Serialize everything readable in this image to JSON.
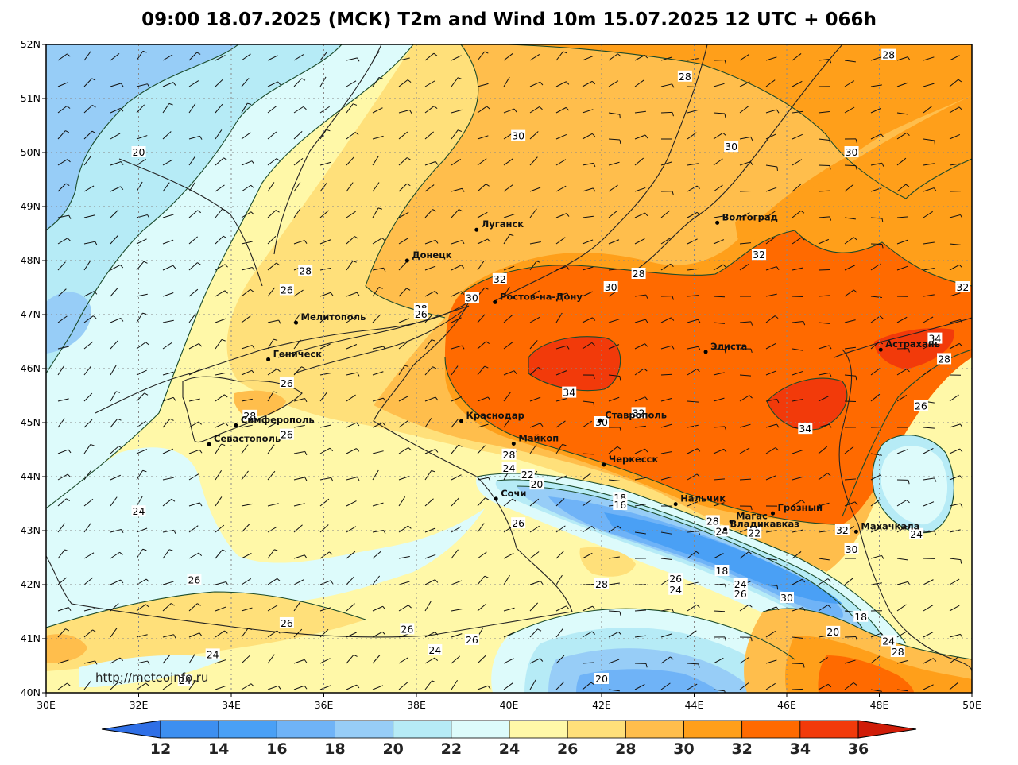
{
  "title": "09:00 18.07.2025 (МСК) T2m and Wind 10m 15.07.2025 12 UTC + 066h",
  "credit": "http://meteoinfo.ru",
  "lat_ticks": [
    "52N",
    "51N",
    "50N",
    "49N",
    "48N",
    "47N",
    "46N",
    "45N",
    "44N",
    "43N",
    "42N",
    "41N",
    "40N"
  ],
  "lon_ticks": [
    "30E",
    "32E",
    "34E",
    "36E",
    "38E",
    "40E",
    "42E",
    "44E",
    "46E",
    "48E",
    "50E"
  ],
  "colorbar": {
    "labels": [
      "12",
      "14",
      "16",
      "18",
      "20",
      "22",
      "24",
      "26",
      "28",
      "30",
      "32",
      "34",
      "36"
    ],
    "colors": [
      "#2f6fe6",
      "#3d8ff0",
      "#4aa0f5",
      "#6fb3f7",
      "#97cdf7",
      "#b6ebf6",
      "#ddfbfb",
      "#fff8a8",
      "#ffe07a",
      "#ffbe4c",
      "#ff9f1a",
      "#ff6a00",
      "#f23a0a",
      "#d01c08"
    ]
  },
  "zones": {
    "t20": "#97cdf7",
    "t22": "#b6ebf6",
    "t24": "#ddfbfb",
    "t26": "#fff8a8",
    "t28": "#ffe07a",
    "t30": "#ffbe4c",
    "t32": "#ff9f1a",
    "t34": "#ff6a00",
    "t18": "#6fb3f7",
    "t16": "#4aa0f5"
  },
  "cities": [
    {
      "name": "Луганск",
      "lon": 39.3,
      "lat": 48.57
    },
    {
      "name": "Донецк",
      "lon": 37.8,
      "lat": 48.0
    },
    {
      "name": "Волгоград",
      "lon": 44.5,
      "lat": 48.7
    },
    {
      "name": "Ростов-на-Дону",
      "lon": 39.7,
      "lat": 47.23
    },
    {
      "name": "Мелитополь",
      "lon": 35.4,
      "lat": 46.85
    },
    {
      "name": "Геническ",
      "lon": 34.8,
      "lat": 46.17
    },
    {
      "name": "Элиста",
      "lon": 44.25,
      "lat": 46.31
    },
    {
      "name": "Астрахань",
      "lon": 48.03,
      "lat": 46.35
    },
    {
      "name": "Краснодар",
      "lon": 38.97,
      "lat": 45.03
    },
    {
      "name": "Ставрополь",
      "lon": 41.97,
      "lat": 45.04
    },
    {
      "name": "Симферополь",
      "lon": 34.1,
      "lat": 44.95
    },
    {
      "name": "Севастополь",
      "lon": 33.52,
      "lat": 44.6
    },
    {
      "name": "Майкоп",
      "lon": 40.1,
      "lat": 44.61
    },
    {
      "name": "Черкесск",
      "lon": 42.05,
      "lat": 44.22
    },
    {
      "name": "Сочи",
      "lon": 39.72,
      "lat": 43.59
    },
    {
      "name": "Нальчик",
      "lon": 43.6,
      "lat": 43.49
    },
    {
      "name": "Магас",
      "lon": 44.8,
      "lat": 43.17
    },
    {
      "name": "Владикавказ",
      "lon": 44.67,
      "lat": 43.02
    },
    {
      "name": "Грозный",
      "lon": 45.7,
      "lat": 43.32
    },
    {
      "name": "Махачкала",
      "lon": 47.5,
      "lat": 42.98
    }
  ],
  "contour_labels": [
    {
      "v": "28",
      "lon": 48.2,
      "lat": 51.8
    },
    {
      "v": "28",
      "lon": 43.8,
      "lat": 51.4
    },
    {
      "v": "30",
      "lon": 40.2,
      "lat": 50.3
    },
    {
      "v": "30",
      "lon": 44.8,
      "lat": 50.1
    },
    {
      "v": "30",
      "lon": 47.4,
      "lat": 50.0
    },
    {
      "v": "20",
      "lon": 32.0,
      "lat": 50.0
    },
    {
      "v": "32",
      "lon": 45.4,
      "lat": 48.1
    },
    {
      "v": "28",
      "lon": 42.8,
      "lat": 47.75
    },
    {
      "v": "30",
      "lon": 42.2,
      "lat": 47.5
    },
    {
      "v": "28",
      "lon": 35.6,
      "lat": 47.8
    },
    {
      "v": "26",
      "lon": 35.2,
      "lat": 47.45
    },
    {
      "v": "32",
      "lon": 39.8,
      "lat": 47.65
    },
    {
      "v": "30",
      "lon": 39.2,
      "lat": 47.3
    },
    {
      "v": "28",
      "lon": 38.1,
      "lat": 47.1
    },
    {
      "v": "26",
      "lon": 38.1,
      "lat": 47.0
    },
    {
      "v": "32",
      "lon": 49.8,
      "lat": 47.5
    },
    {
      "v": "34",
      "lon": 49.2,
      "lat": 46.55
    },
    {
      "v": "28",
      "lon": 49.4,
      "lat": 46.17
    },
    {
      "v": "26",
      "lon": 35.2,
      "lat": 45.72
    },
    {
      "v": "34",
      "lon": 41.3,
      "lat": 45.55
    },
    {
      "v": "26",
      "lon": 48.9,
      "lat": 45.3
    },
    {
      "v": "34",
      "lon": 46.4,
      "lat": 44.88
    },
    {
      "v": "28",
      "lon": 34.4,
      "lat": 45.12
    },
    {
      "v": "26",
      "lon": 35.2,
      "lat": 44.77
    },
    {
      "v": "30",
      "lon": 42.0,
      "lat": 45.0
    },
    {
      "v": "32",
      "lon": 42.8,
      "lat": 45.17
    },
    {
      "v": "28",
      "lon": 40.0,
      "lat": 44.4
    },
    {
      "v": "24",
      "lon": 40.0,
      "lat": 44.15
    },
    {
      "v": "22",
      "lon": 40.4,
      "lat": 44.03
    },
    {
      "v": "20",
      "lon": 40.6,
      "lat": 43.85
    },
    {
      "v": "18",
      "lon": 42.4,
      "lat": 43.6
    },
    {
      "v": "16",
      "lon": 42.4,
      "lat": 43.47
    },
    {
      "v": "26",
      "lon": 40.2,
      "lat": 43.13
    },
    {
      "v": "24",
      "lon": 32.0,
      "lat": 43.35
    },
    {
      "v": "28",
      "lon": 44.4,
      "lat": 43.17
    },
    {
      "v": "24",
      "lon": 44.6,
      "lat": 42.98
    },
    {
      "v": "22",
      "lon": 45.3,
      "lat": 42.95
    },
    {
      "v": "32",
      "lon": 47.2,
      "lat": 43.0
    },
    {
      "v": "24",
      "lon": 48.8,
      "lat": 42.93
    },
    {
      "v": "30",
      "lon": 47.4,
      "lat": 42.65
    },
    {
      "v": "18",
      "lon": 44.6,
      "lat": 42.25
    },
    {
      "v": "28",
      "lon": 42.0,
      "lat": 42.0
    },
    {
      "v": "26",
      "lon": 43.6,
      "lat": 42.1
    },
    {
      "v": "24",
      "lon": 43.6,
      "lat": 41.9
    },
    {
      "v": "24",
      "lon": 45.0,
      "lat": 42.0
    },
    {
      "v": "26",
      "lon": 45.0,
      "lat": 41.82
    },
    {
      "v": "30",
      "lon": 46.0,
      "lat": 41.75
    },
    {
      "v": "26",
      "lon": 33.2,
      "lat": 42.08
    },
    {
      "v": "26",
      "lon": 35.2,
      "lat": 41.28
    },
    {
      "v": "26",
      "lon": 37.8,
      "lat": 41.17
    },
    {
      "v": "26",
      "lon": 39.2,
      "lat": 40.97
    },
    {
      "v": "24",
      "lon": 38.4,
      "lat": 40.78
    },
    {
      "v": "24",
      "lon": 33.6,
      "lat": 40.7
    },
    {
      "v": "18",
      "lon": 47.6,
      "lat": 41.4
    },
    {
      "v": "20",
      "lon": 47.0,
      "lat": 41.12
    },
    {
      "v": "24",
      "lon": 48.2,
      "lat": 40.95
    },
    {
      "v": "28",
      "lon": 48.4,
      "lat": 40.75
    },
    {
      "v": "20",
      "lon": 42.0,
      "lat": 40.25
    },
    {
      "v": "24",
      "lon": 33.0,
      "lat": 40.22
    }
  ]
}
